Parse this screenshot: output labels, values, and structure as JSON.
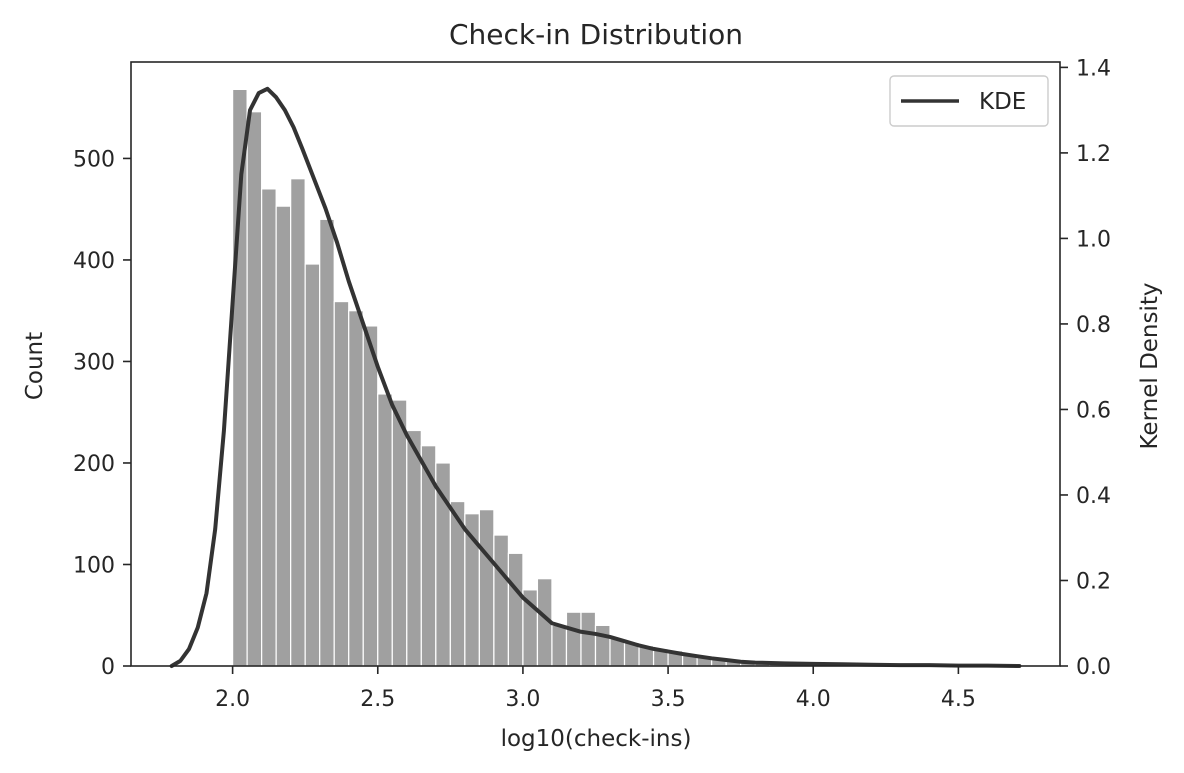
{
  "chart_data": {
    "type": "bar",
    "title": "Check-in Distribution",
    "xlabel": "log10(check-ins)",
    "ylabel": "Count",
    "y2label": "Kernel Density",
    "xlim": [
      1.65,
      4.85
    ],
    "ylim": [
      0,
      595
    ],
    "y2lim": [
      0,
      1.4126
    ],
    "x_ticks": [
      2.0,
      2.5,
      3.0,
      3.5,
      4.0,
      4.5
    ],
    "x_tick_labels": [
      "2.0",
      "2.5",
      "3.0",
      "3.5",
      "4.0",
      "4.5"
    ],
    "y_ticks": [
      0,
      100,
      200,
      300,
      400,
      500
    ],
    "y_tick_labels": [
      "0",
      "100",
      "200",
      "300",
      "400",
      "500"
    ],
    "y2_ticks": [
      0,
      0.2,
      0.4,
      0.6,
      0.8,
      1.0,
      1.2,
      1.4
    ],
    "y2_tick_labels": [
      "0.0",
      "0.2",
      "0.4",
      "0.6",
      "0.8",
      "1.0",
      "1.2",
      "1.4"
    ],
    "bin_width": 0.05,
    "bins_start": [
      2.0,
      2.05,
      2.1,
      2.15,
      2.2,
      2.25,
      2.3,
      2.35,
      2.4,
      2.45,
      2.5,
      2.55,
      2.6,
      2.65,
      2.7,
      2.75,
      2.8,
      2.85,
      2.9,
      2.95,
      3.0,
      3.05,
      3.1,
      3.15,
      3.2,
      3.25,
      3.3,
      3.35,
      3.4,
      3.45,
      3.5,
      3.55,
      3.6,
      3.65,
      3.7,
      3.75,
      3.8,
      3.85,
      3.9,
      3.95,
      4.0,
      4.05,
      4.1,
      4.15,
      4.2,
      4.25,
      4.3,
      4.35,
      4.4,
      4.45,
      4.5,
      4.55,
      4.6,
      4.65
    ],
    "values": [
      568,
      546,
      470,
      453,
      480,
      396,
      440,
      359,
      350,
      335,
      268,
      262,
      232,
      217,
      200,
      162,
      150,
      154,
      129,
      111,
      75,
      86,
      40,
      53,
      53,
      40,
      27,
      23,
      20,
      17,
      15,
      11,
      9,
      7,
      5,
      4,
      3,
      3,
      2,
      2,
      2,
      1,
      1,
      1,
      1,
      1,
      1,
      1,
      1,
      1,
      1,
      1,
      1,
      1
    ],
    "bar_color": "#a0a0a0",
    "series": [
      {
        "name": "KDE",
        "type": "line",
        "axis": "right",
        "color": "#333333",
        "x": [
          1.79,
          1.82,
          1.85,
          1.88,
          1.91,
          1.94,
          1.97,
          2.0,
          2.03,
          2.06,
          2.09,
          2.12,
          2.15,
          2.18,
          2.21,
          2.24,
          2.28,
          2.32,
          2.36,
          2.4,
          2.45,
          2.5,
          2.55,
          2.6,
          2.65,
          2.7,
          2.75,
          2.8,
          2.85,
          2.9,
          2.95,
          3.0,
          3.05,
          3.1,
          3.15,
          3.2,
          3.25,
          3.3,
          3.35,
          3.4,
          3.45,
          3.5,
          3.55,
          3.6,
          3.65,
          3.7,
          3.75,
          3.8,
          3.9,
          4.0,
          4.1,
          4.2,
          4.3,
          4.4,
          4.5,
          4.6,
          4.71
        ],
        "y": [
          0.0,
          0.012,
          0.04,
          0.09,
          0.17,
          0.32,
          0.55,
          0.85,
          1.15,
          1.3,
          1.34,
          1.35,
          1.33,
          1.3,
          1.26,
          1.21,
          1.14,
          1.07,
          0.99,
          0.9,
          0.8,
          0.7,
          0.61,
          0.54,
          0.48,
          0.42,
          0.37,
          0.32,
          0.28,
          0.24,
          0.2,
          0.16,
          0.13,
          0.1,
          0.09,
          0.08,
          0.075,
          0.068,
          0.058,
          0.048,
          0.04,
          0.034,
          0.028,
          0.023,
          0.018,
          0.014,
          0.01,
          0.008,
          0.006,
          0.005,
          0.004,
          0.003,
          0.002,
          0.002,
          0.001,
          0.001,
          0.0
        ]
      }
    ],
    "legend": {
      "position": "top-right",
      "entries": [
        "KDE"
      ]
    },
    "grid": false
  }
}
